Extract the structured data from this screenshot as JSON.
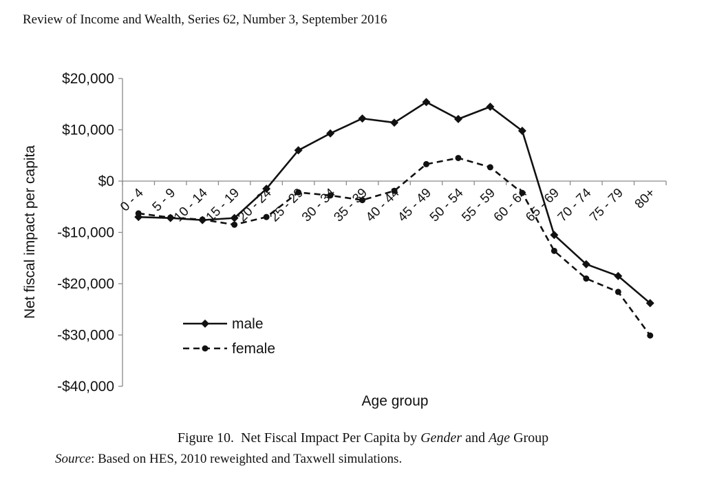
{
  "header": {
    "journal_line": "Review of Income and Wealth, Series 62, Number 3, September 2016"
  },
  "figure": {
    "label": "Figure 10.",
    "caption_part1": "Net Fiscal Impact Per Capita by",
    "caption_italic1": "Gender",
    "caption_part2": "and",
    "caption_italic2": "Age",
    "caption_part3": "Group",
    "source_label": "Source",
    "source_text": ": Based on HES, 2010 reweighted and Taxwell simulations."
  },
  "chart_data": {
    "type": "line",
    "xlabel": "Age group",
    "ylabel": "Net fiscal impact per capita",
    "ylim": [
      -40000,
      20000
    ],
    "yticks": [
      20000,
      10000,
      0,
      -10000,
      -20000,
      -30000,
      -40000
    ],
    "ytick_labels": [
      "$20,000",
      "$10,000",
      "$0",
      "-$10,000",
      "-$20,000",
      "-$30,000",
      "-$40,000"
    ],
    "categories": [
      "0 - 4",
      "5 - 9",
      "10 - 14",
      "15 - 19",
      "20 - 24",
      "25 - 29",
      "30 - 34",
      "35 - 39",
      "40 - 44",
      "45 - 49",
      "50 - 54",
      "55 - 59",
      "60 - 64",
      "65 - 69",
      "70 - 74",
      "75 - 79",
      "80+"
    ],
    "legend_position": "lower-left",
    "grid": false,
    "series": [
      {
        "name": "male",
        "marker": "diamond",
        "dash": "solid",
        "values": [
          -7000,
          -7200,
          -7600,
          -7200,
          -1500,
          6000,
          9300,
          12200,
          11400,
          15400,
          12100,
          14500,
          9800,
          -10500,
          -16200,
          -18500,
          -23800
        ]
      },
      {
        "name": "female",
        "marker": "circle",
        "dash": "dashed",
        "values": [
          -6300,
          -7100,
          -7500,
          -8500,
          -7000,
          -2200,
          -2800,
          -3700,
          -1900,
          3300,
          4500,
          2700,
          -2300,
          -13600,
          -19000,
          -21600,
          -30100
        ]
      }
    ]
  }
}
